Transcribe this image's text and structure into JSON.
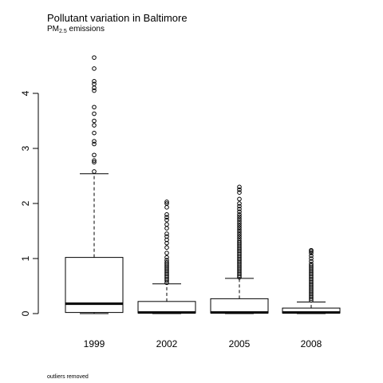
{
  "title": "Pollutant variation in Baltimore",
  "subtitle": {
    "prefix": "PM",
    "subscript": "2.5",
    "suffix": " emissions"
  },
  "footnote": "outliers removed",
  "chart_data": {
    "type": "boxplot",
    "categories": [
      "1999",
      "2002",
      "2005",
      "2008"
    ],
    "ylim": [
      0,
      4.7
    ],
    "yticks": [
      0,
      1,
      2,
      3,
      4
    ],
    "grid": false,
    "legend": "none",
    "boxes": [
      {
        "category": "1999",
        "whisker_low": 0.0,
        "q1": 0.02,
        "median": 0.18,
        "q3": 1.02,
        "whisker_high": 2.54,
        "outliers": [
          2.58,
          2.75,
          2.78,
          2.88,
          3.08,
          3.13,
          3.28,
          3.42,
          3.5,
          3.63,
          3.75,
          4.05,
          4.1,
          4.17,
          4.22,
          4.45,
          4.65
        ]
      },
      {
        "category": "2002",
        "whisker_low": 0.0,
        "q1": 0.01,
        "median": 0.02,
        "q3": 0.22,
        "whisker_high": 0.54,
        "outliers": [
          0.56,
          0.6,
          0.63,
          0.66,
          0.69,
          0.72,
          0.75,
          0.78,
          0.81,
          0.84,
          0.87,
          0.9,
          0.93,
          0.97,
          1.02,
          1.1,
          1.2,
          1.28,
          1.34,
          1.4,
          1.45,
          1.55,
          1.62,
          1.7,
          1.75,
          1.8,
          1.93,
          2.0,
          2.03
        ]
      },
      {
        "category": "2005",
        "whisker_low": 0.0,
        "q1": 0.01,
        "median": 0.02,
        "q3": 0.27,
        "whisker_high": 0.64,
        "outliers": [
          0.66,
          0.69,
          0.72,
          0.75,
          0.78,
          0.81,
          0.84,
          0.87,
          0.9,
          0.93,
          0.96,
          0.99,
          1.02,
          1.05,
          1.08,
          1.11,
          1.14,
          1.17,
          1.2,
          1.23,
          1.26,
          1.29,
          1.32,
          1.36,
          1.4,
          1.44,
          1.48,
          1.52,
          1.56,
          1.6,
          1.64,
          1.68,
          1.72,
          1.76,
          1.8,
          1.85,
          1.9,
          1.95,
          2.0,
          2.08,
          2.2,
          2.25,
          2.3
        ]
      },
      {
        "category": "2008",
        "whisker_low": 0.0,
        "q1": 0.01,
        "median": 0.02,
        "q3": 0.1,
        "whisker_high": 0.21,
        "outliers": [
          0.24,
          0.27,
          0.3,
          0.33,
          0.36,
          0.39,
          0.42,
          0.45,
          0.48,
          0.51,
          0.54,
          0.57,
          0.6,
          0.63,
          0.66,
          0.69,
          0.72,
          0.75,
          0.78,
          0.81,
          0.84,
          0.87,
          0.9,
          0.95,
          1.0,
          1.05,
          1.1,
          1.13,
          1.15
        ]
      }
    ]
  }
}
